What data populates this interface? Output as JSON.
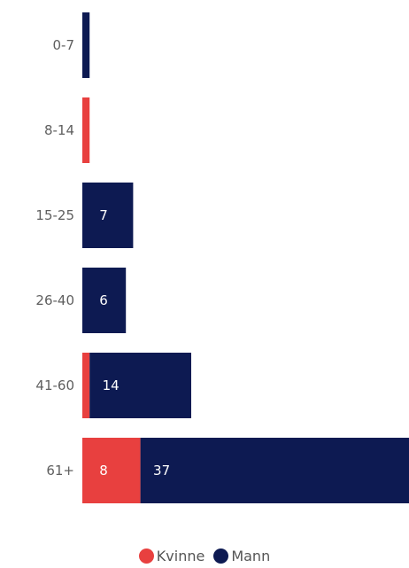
{
  "chart_data": {
    "type": "bar",
    "orientation": "horizontal",
    "stacked": true,
    "categories": [
      "0-7",
      "8-14",
      "15-25",
      "26-40",
      "41-60",
      "61+"
    ],
    "series": [
      {
        "name": "Kvinne",
        "color": "#e8403f",
        "values": [
          0,
          1,
          0,
          0,
          1,
          8
        ],
        "labels": [
          "",
          "",
          "",
          "",
          "",
          "8"
        ]
      },
      {
        "name": "Mann",
        "color": "#0d1a52",
        "values": [
          1,
          0,
          7,
          6,
          14,
          37
        ],
        "labels": [
          "",
          "",
          "7",
          "6",
          "14",
          "37"
        ]
      }
    ],
    "xlim": [
      0,
      45
    ],
    "grid": false,
    "legend_position": "bottom-center"
  }
}
